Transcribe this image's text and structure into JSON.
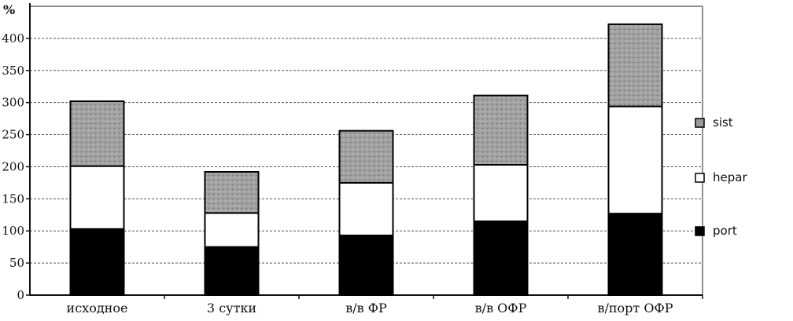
{
  "chart_data": {
    "type": "bar",
    "stacked": true,
    "ylabel": "%",
    "ylim": [
      0,
      450
    ],
    "yticks": [
      0,
      50,
      100,
      150,
      200,
      250,
      300,
      350,
      400
    ],
    "grid": true,
    "legend_position": "right",
    "categories": [
      "исходное",
      "3 сутки",
      "в/в  ФР",
      "в/в  ОФР",
      "в/порт  ОФР"
    ],
    "series": [
      {
        "name": "port",
        "values": [
          103,
          75,
          93,
          115,
          127
        ],
        "color": "#000000"
      },
      {
        "name": "hepar",
        "values": [
          98,
          53,
          82,
          88,
          167
        ],
        "color": "#ffffff"
      },
      {
        "name": "sist",
        "values": [
          101,
          64,
          81,
          108,
          128
        ],
        "color": "#9a9a9a"
      }
    ],
    "legend_order": [
      "sist",
      "hepar",
      "port"
    ]
  }
}
